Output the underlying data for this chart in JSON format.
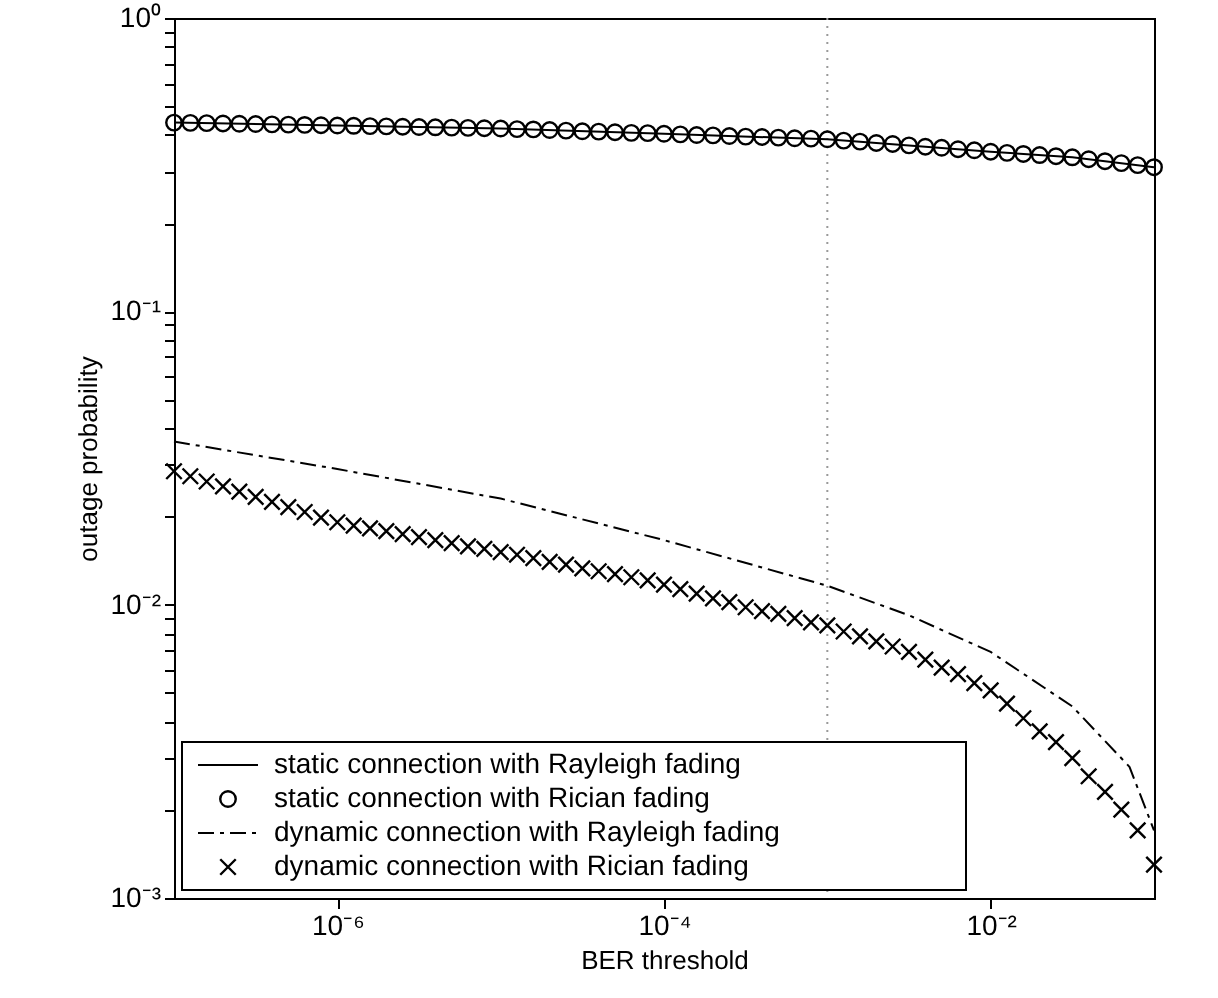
{
  "chart_data": {
    "type": "line",
    "xlabel": "BER threshold",
    "ylabel": "outage probability",
    "log": "xy",
    "grid": false,
    "legend": "bottom left",
    "xlim": [
      1e-07,
      0.1
    ],
    "ylim": [
      0.001,
      1
    ],
    "xticks": [
      {
        "value": 1e-06,
        "label": "10⁻⁶"
      },
      {
        "value": 0.0001,
        "label": "10⁻⁴"
      },
      {
        "value": 0.01,
        "label": "10⁻²"
      }
    ],
    "yticks": [
      {
        "value": 0.001,
        "label": "10⁻³"
      },
      {
        "value": 0.002,
        "label": null
      },
      {
        "value": 0.003,
        "label": null
      },
      {
        "value": 0.004,
        "label": null
      },
      {
        "value": 0.005,
        "label": null
      },
      {
        "value": 0.006,
        "label": null
      },
      {
        "value": 0.007,
        "label": null
      },
      {
        "value": 0.008,
        "label": null
      },
      {
        "value": 0.009,
        "label": null
      },
      {
        "value": 0.01,
        "label": "10⁻²"
      },
      {
        "value": 0.02,
        "label": null
      },
      {
        "value": 0.03,
        "label": null
      },
      {
        "value": 0.04,
        "label": null
      },
      {
        "value": 0.05,
        "label": null
      },
      {
        "value": 0.06,
        "label": null
      },
      {
        "value": 0.07,
        "label": null
      },
      {
        "value": 0.08,
        "label": null
      },
      {
        "value": 0.09,
        "label": null
      },
      {
        "value": 0.1,
        "label": "10⁻¹"
      },
      {
        "value": 0.2,
        "label": null
      },
      {
        "value": 0.3,
        "label": null
      },
      {
        "value": 0.4,
        "label": null
      },
      {
        "value": 0.5,
        "label": null
      },
      {
        "value": 0.6,
        "label": null
      },
      {
        "value": 0.7,
        "label": null
      },
      {
        "value": 0.8,
        "label": null
      },
      {
        "value": 0.9,
        "label": null
      },
      {
        "value": 1,
        "label": "10⁰"
      }
    ],
    "ref_lines": [
      {
        "axis": "x",
        "value": 0.001,
        "label": null,
        "color": "#999999",
        "line_style": "dotted"
      }
    ],
    "series": [
      {
        "name": "static connection with Rayleigh fading",
        "line_style": "solid",
        "color": "#000000",
        "x": [
          1e-07,
          1e-06,
          1e-05,
          0.0001,
          0.001,
          0.01,
          0.03162,
          0.1
        ],
        "values": [
          0.44,
          0.43,
          0.42,
          0.403,
          0.386,
          0.35,
          0.335,
          0.31
        ]
      },
      {
        "name": "static connection with Rician fading",
        "type": "scatter",
        "marker": "circle",
        "color": "#000000",
        "x": [
          1e-07,
          1.259e-07,
          1.585e-07,
          1.995e-07,
          2.512e-07,
          3.162e-07,
          3.981e-07,
          5.012e-07,
          6.31e-07,
          7.943e-07,
          1e-06,
          1.259e-06,
          1.585e-06,
          1.995e-06,
          2.512e-06,
          3.162e-06,
          3.981e-06,
          5.012e-06,
          6.31e-06,
          7.943e-06,
          1e-05,
          1.259e-05,
          1.585e-05,
          1.995e-05,
          2.512e-05,
          3.162e-05,
          3.981e-05,
          5.012e-05,
          6.31e-05,
          7.943e-05,
          0.0001,
          0.0001259,
          0.0001585,
          0.0001995,
          0.0002512,
          0.0003162,
          0.0003981,
          0.0005012,
          0.000631,
          0.0007943,
          0.001,
          0.001259,
          0.001585,
          0.001995,
          0.002512,
          0.003162,
          0.003981,
          0.005012,
          0.00631,
          0.007943,
          0.01,
          0.01259,
          0.01585,
          0.01995,
          0.02512,
          0.03162,
          0.03981,
          0.05012,
          0.0631,
          0.07943,
          0.1
        ],
        "values": [
          0.44,
          0.439,
          0.438,
          0.437,
          0.436,
          0.435,
          0.434,
          0.433,
          0.432,
          0.431,
          0.43,
          0.429,
          0.428,
          0.427,
          0.426,
          0.425,
          0.424,
          0.423,
          0.422,
          0.421,
          0.42,
          0.418,
          0.417,
          0.415,
          0.413,
          0.411,
          0.41,
          0.408,
          0.406,
          0.405,
          0.403,
          0.401,
          0.399,
          0.398,
          0.396,
          0.394,
          0.393,
          0.391,
          0.389,
          0.388,
          0.386,
          0.382,
          0.379,
          0.375,
          0.372,
          0.368,
          0.364,
          0.361,
          0.357,
          0.354,
          0.35,
          0.347,
          0.344,
          0.341,
          0.338,
          0.335,
          0.33,
          0.325,
          0.32,
          0.315,
          0.31
        ]
      },
      {
        "name": "dynamic connection with Rayleigh fading",
        "line_style": "dashdot",
        "color": "#000000",
        "x": [
          1e-07,
          1e-06,
          1e-05,
          0.0001,
          0.001,
          0.003162,
          0.01,
          0.03162,
          0.07079,
          0.1
        ],
        "values": [
          0.036,
          0.029,
          0.023,
          0.0166,
          0.0116,
          0.0092,
          0.0069,
          0.0045,
          0.0028,
          0.0017
        ]
      },
      {
        "name": "dynamic connection with Rician fading",
        "type": "scatter",
        "marker": "cross",
        "color": "#000000",
        "x": [
          1e-07,
          1.259e-07,
          1.585e-07,
          1.995e-07,
          2.512e-07,
          3.162e-07,
          3.981e-07,
          5.012e-07,
          6.31e-07,
          7.943e-07,
          1e-06,
          1.259e-06,
          1.585e-06,
          1.995e-06,
          2.512e-06,
          3.162e-06,
          3.981e-06,
          5.012e-06,
          6.31e-06,
          7.943e-06,
          1e-05,
          1.259e-05,
          1.585e-05,
          1.995e-05,
          2.512e-05,
          3.162e-05,
          3.981e-05,
          5.012e-05,
          6.31e-05,
          7.943e-05,
          0.0001,
          0.0001259,
          0.0001585,
          0.0001995,
          0.0002512,
          0.0003162,
          0.0003981,
          0.0005012,
          0.000631,
          0.0007943,
          0.001,
          0.001259,
          0.001585,
          0.001995,
          0.002512,
          0.003162,
          0.003981,
          0.005012,
          0.00631,
          0.007943,
          0.01,
          0.01259,
          0.01585,
          0.01995,
          0.02512,
          0.03162,
          0.03981,
          0.05012,
          0.0631,
          0.07943,
          0.1
        ],
        "values": [
          0.0285,
          0.0274,
          0.0263,
          0.0253,
          0.0243,
          0.0233,
          0.0224,
          0.0215,
          0.0207,
          0.0198,
          0.0191,
          0.0186,
          0.0182,
          0.0178,
          0.0174,
          0.017,
          0.0166,
          0.0162,
          0.0158,
          0.0155,
          0.0151,
          0.0148,
          0.0144,
          0.014,
          0.0137,
          0.0133,
          0.013,
          0.0127,
          0.0124,
          0.0121,
          0.0117,
          0.0113,
          0.0109,
          0.0105,
          0.0102,
          0.0098,
          0.0095,
          0.0093,
          0.009,
          0.0087,
          0.0085,
          0.0081,
          0.0078,
          0.0075,
          0.0072,
          0.0069,
          0.0065,
          0.0061,
          0.0058,
          0.0054,
          0.0051,
          0.0046,
          0.0041,
          0.0037,
          0.0034,
          0.003,
          0.0026,
          0.0023,
          0.002,
          0.0017,
          0.0013
        ]
      }
    ]
  }
}
